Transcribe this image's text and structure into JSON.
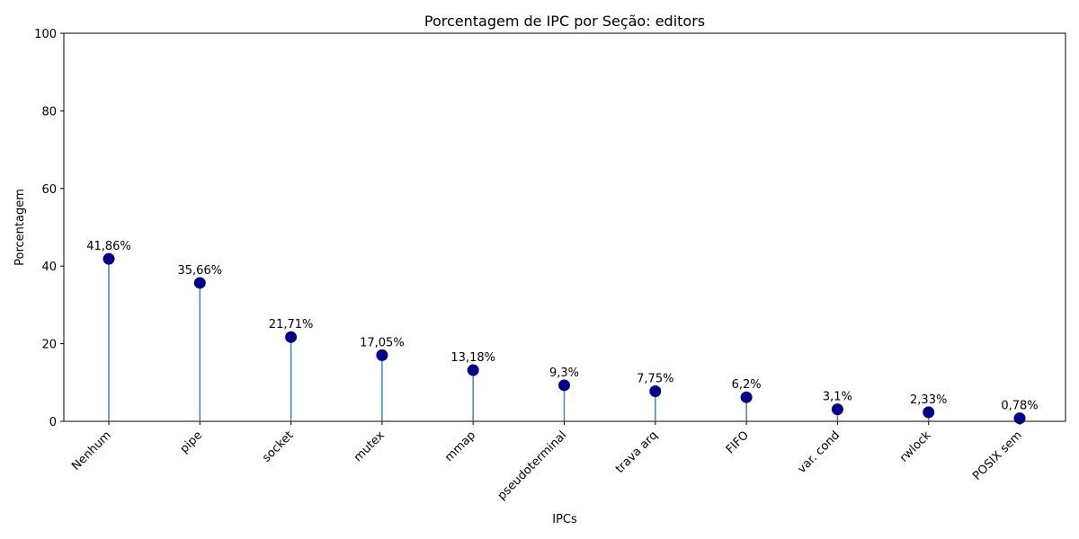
{
  "chart_data": {
    "type": "lollipop",
    "title": "Porcentagem de IPC por Seção: editors",
    "xlabel": "IPCs",
    "ylabel": "Porcentagem",
    "ylim": [
      0,
      100
    ],
    "yticks": [
      0,
      20,
      40,
      60,
      80,
      100
    ],
    "grid": false,
    "categories": [
      "Nenhum",
      "pipe",
      "socket",
      "mutex",
      "mmap",
      "pseudoterminal",
      "trava arq",
      "FIFO",
      "var. cond",
      "rwlock",
      "POSIX sem"
    ],
    "values": [
      41.86,
      35.66,
      21.71,
      17.05,
      13.18,
      9.3,
      7.75,
      6.2,
      3.1,
      2.33,
      0.78
    ],
    "value_labels": [
      "41,86%",
      "35,66%",
      "21,71%",
      "17,05%",
      "13,18%",
      "9,3%",
      "7,75%",
      "6,2%",
      "3,1%",
      "2,33%",
      "0,78%"
    ],
    "colors": {
      "marker": "#00008b",
      "stem": "#4682b4"
    }
  }
}
